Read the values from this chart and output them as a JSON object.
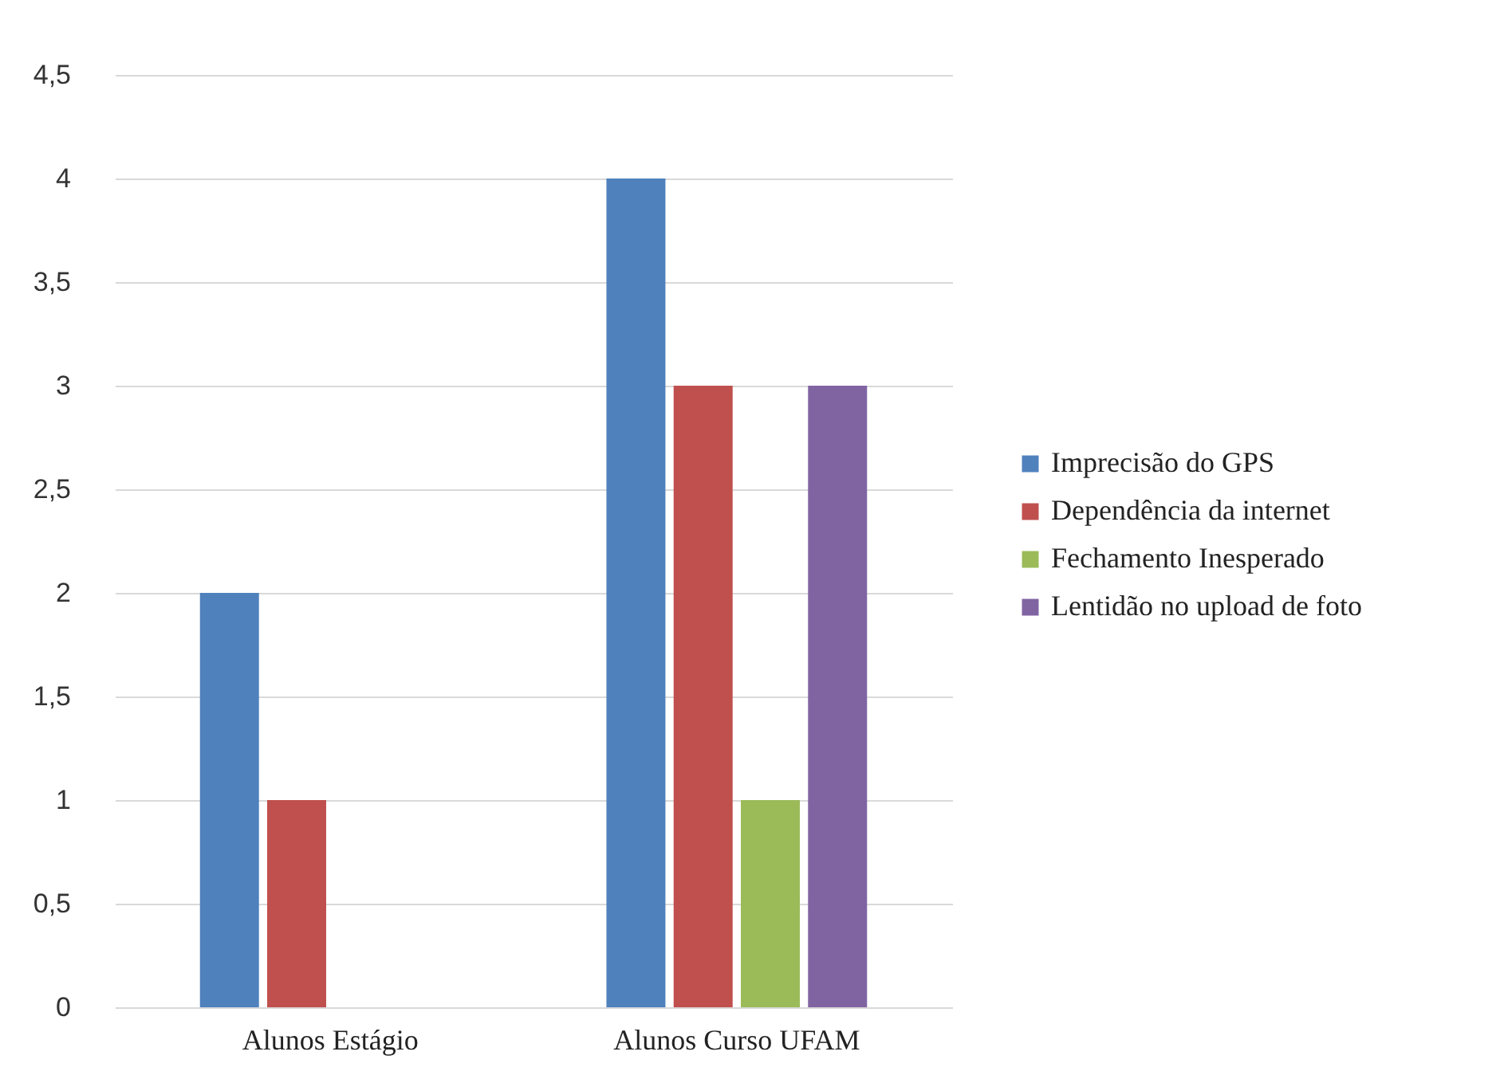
{
  "chart_data": {
    "type": "bar",
    "categories": [
      "Alunos Estágio",
      "Alunos Curso UFAM"
    ],
    "series": [
      {
        "name": "Imprecisão do GPS",
        "color": "#4f81bd",
        "values": [
          2,
          4
        ]
      },
      {
        "name": "Dependência da internet",
        "color": "#c0504d",
        "values": [
          1,
          3
        ]
      },
      {
        "name": "Fechamento Inesperado",
        "color": "#9bbb59",
        "values": [
          0,
          1
        ]
      },
      {
        "name": "Lentidão no upload de foto",
        "color": "#8064a2",
        "values": [
          0,
          3
        ]
      }
    ],
    "ylim": [
      0,
      4.5
    ],
    "yticks": [
      0,
      {
        "value": 0.5,
        "label": "0,5"
      },
      1,
      {
        "value": 1.5,
        "label": "1,5"
      },
      2,
      {
        "value": 2.5,
        "label": "2,5"
      },
      3,
      {
        "value": 3.5,
        "label": "3,5"
      },
      4,
      {
        "value": 4.5,
        "label": "4,5"
      }
    ],
    "grid": "y",
    "legend": "right"
  }
}
